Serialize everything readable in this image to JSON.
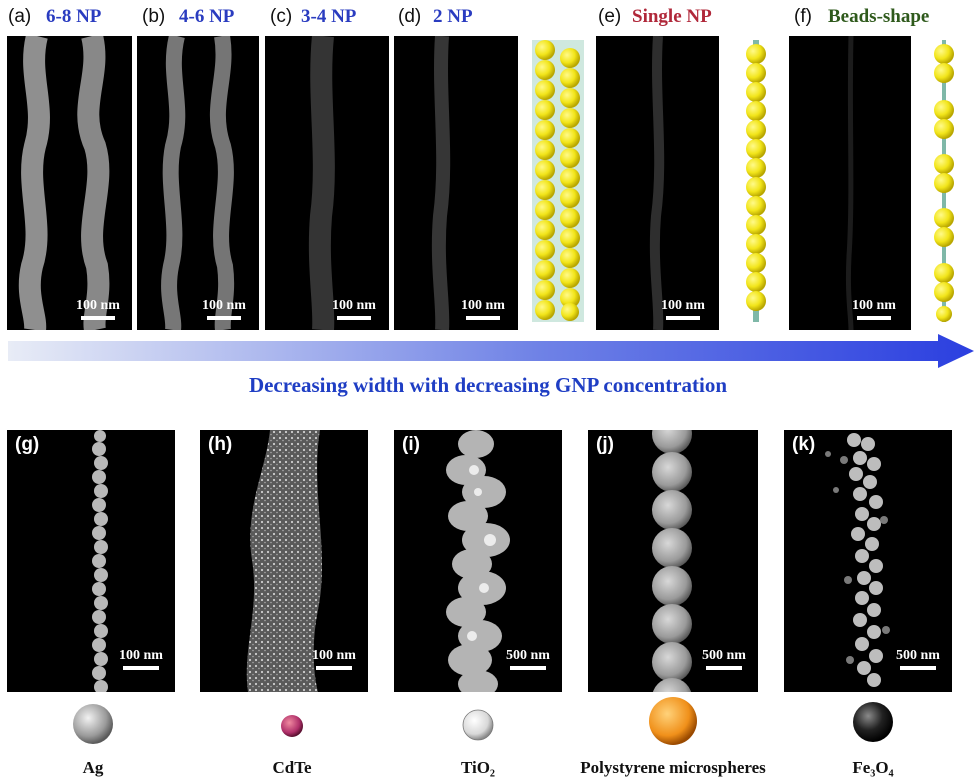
{
  "top_panels": [
    {
      "label": "(a)",
      "title": "6-8 NP",
      "scale": "100 nm"
    },
    {
      "label": "(b)",
      "title": "4-6 NP",
      "scale": "100 nm"
    },
    {
      "label": "(c)",
      "title": "3-4 NP",
      "scale": "100 nm"
    },
    {
      "label": "(d)",
      "title": "2 NP",
      "scale": "100 nm"
    },
    {
      "label": "(e)",
      "title": "Single NP",
      "scale": "100 nm"
    },
    {
      "label": "(f)",
      "title": "Beads-shape",
      "scale": "100 nm"
    }
  ],
  "arrow_caption": "Decreasing width with decreasing GNP concentration",
  "bottom_panels": [
    {
      "label": "(g)",
      "scale": "100 nm",
      "material": "Ag"
    },
    {
      "label": "(h)",
      "scale": "100 nm",
      "material": "CdTe"
    },
    {
      "label": "(i)",
      "scale": "500 nm",
      "material": "TiO₂"
    },
    {
      "label": "(j)",
      "scale": "500 nm",
      "material": "Polystyrene microspheres"
    },
    {
      "label": "(k)",
      "scale": "500 nm",
      "material": "Fe₃O₄"
    }
  ],
  "colors": {
    "title_blue": "#2a3cc0",
    "title_red": "#b0283a",
    "title_green": "#2f5a1c",
    "arrow_blue": "#2b3fe0",
    "bead_yellow": "#f2e51a",
    "ag_sphere": "#9a9a9a",
    "cdte_sphere": "#b0306a",
    "tio2_sphere": "#d8d8d8",
    "ps_sphere": "#f0901a",
    "fe3o4_sphere": "#111111"
  }
}
